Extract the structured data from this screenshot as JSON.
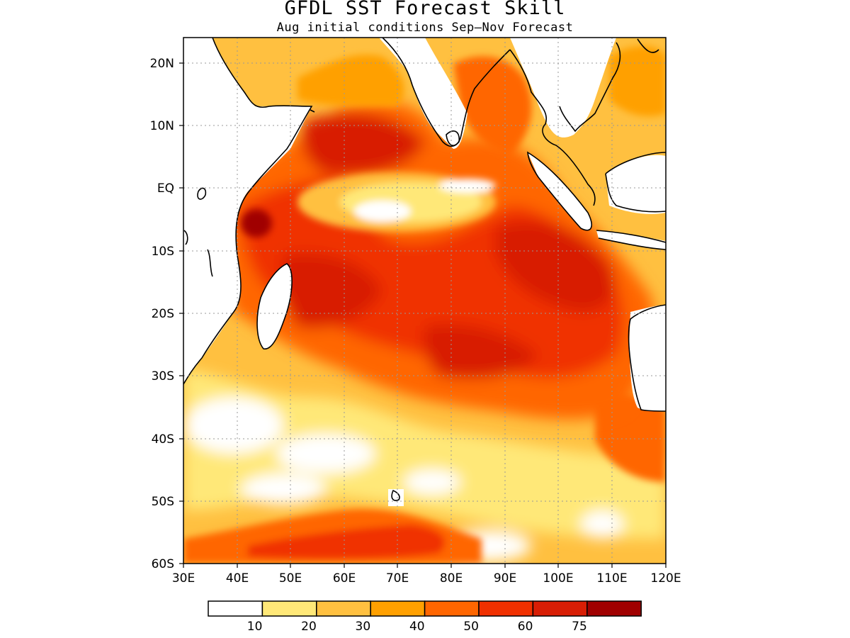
{
  "title": "GFDL SST Forecast Skill",
  "subtitle": "Aug initial conditions  Sep—Nov Forecast",
  "map": {
    "lon_range": [
      30,
      120
    ],
    "lat_range": [
      -60,
      24
    ],
    "x_ticks": [
      "30E",
      "40E",
      "50E",
      "60E",
      "70E",
      "80E",
      "90E",
      "100E",
      "110E",
      "120E"
    ],
    "y_ticks": [
      "20N",
      "10N",
      "EQ",
      "10S",
      "20S",
      "30S",
      "40S",
      "50S",
      "60S"
    ],
    "grid": "dotted"
  },
  "colorbar": {
    "levels": [
      "10",
      "20",
      "30",
      "40",
      "50",
      "60",
      "75"
    ],
    "colors": [
      "#ffffff",
      "#ffe878",
      "#ffc040",
      "#ffa000",
      "#ff6600",
      "#f03000",
      "#d81e05",
      "#a00000"
    ]
  }
}
